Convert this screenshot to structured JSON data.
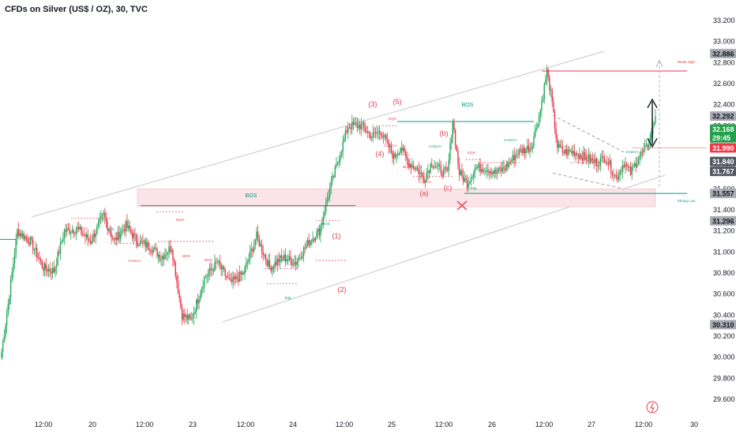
{
  "header": {
    "title": "CFDs on Silver (US$ / OZ), 30, TVC"
  },
  "colors": {
    "up": "#26a65b",
    "down": "#e8394a",
    "green_line": "#089981",
    "red_line": "#f23645",
    "channel": "#c8c8cc",
    "zone": "#fbe4e7"
  },
  "price_tags": [
    {
      "value": "32.886",
      "kind": "grey"
    },
    {
      "value": "32.292",
      "kind": "grey"
    },
    {
      "value": "32.168",
      "kind": "green"
    },
    {
      "value": "29:45",
      "kind": "green-sub"
    },
    {
      "value": "31.990",
      "kind": "red"
    },
    {
      "value": "31.840",
      "kind": "dark"
    },
    {
      "value": "31.767",
      "kind": "dark"
    },
    {
      "value": "31.557",
      "kind": "grey"
    },
    {
      "value": "31.296",
      "kind": "grey"
    },
    {
      "value": "30.310",
      "kind": "grey"
    }
  ],
  "annotations": {
    "bos": "BOS",
    "eqh": "EQH",
    "eql": "EQL",
    "choch": "CHoCH",
    "wave_3": "(3)",
    "wave_5": "(5)",
    "wave_4": "(4)",
    "wave_1": "(1)",
    "wave_2": "(2)",
    "wave_a": "(a)",
    "wave_b": "(b)",
    "wave_c": "(c)",
    "weak_high": "Weak High",
    "strong_low": "Strong Low"
  },
  "chart_data": {
    "type": "candlestick",
    "title": "CFDs on Silver (US$ / OZ), 30, TVC",
    "y_ticks": [
      "33.200",
      "33.000",
      "32.800",
      "32.600",
      "32.400",
      "32.200",
      "32.000",
      "31.800",
      "31.600",
      "31.400",
      "31.200",
      "31.000",
      "30.800",
      "30.600",
      "30.400",
      "30.200",
      "30.000",
      "29.800",
      "29.600"
    ],
    "x_ticks": [
      "12:00",
      "20",
      "12:00",
      "23",
      "12:00",
      "24",
      "12:00",
      "25",
      "12:00",
      "26",
      "12:00",
      "27",
      "12:00",
      "30"
    ],
    "ylim": [
      29.5,
      33.3
    ],
    "grid": false,
    "anchors": [
      [
        0,
        30.05
      ],
      [
        5,
        30.5
      ],
      [
        12,
        31.2
      ],
      [
        22,
        31.1
      ],
      [
        32,
        30.85
      ],
      [
        40,
        30.82
      ],
      [
        48,
        31.2
      ],
      [
        58,
        31.22
      ],
      [
        68,
        31.1
      ],
      [
        78,
        31.35
      ],
      [
        86,
        31.1
      ],
      [
        95,
        31.25
      ],
      [
        104,
        31.1
      ],
      [
        114,
        31.05
      ],
      [
        122,
        30.95
      ],
      [
        130,
        31.05
      ],
      [
        138,
        30.4
      ],
      [
        145,
        30.35
      ],
      [
        155,
        30.75
      ],
      [
        165,
        30.9
      ],
      [
        175,
        30.7
      ],
      [
        185,
        30.8
      ],
      [
        195,
        31.15
      ],
      [
        205,
        30.85
      ],
      [
        215,
        30.95
      ],
      [
        225,
        30.9
      ],
      [
        235,
        31.1
      ],
      [
        243,
        31.2
      ],
      [
        250,
        31.55
      ],
      [
        258,
        31.9
      ],
      [
        265,
        32.2
      ],
      [
        275,
        32.2
      ],
      [
        283,
        32.1
      ],
      [
        290,
        32.15
      ],
      [
        296,
        32.0
      ],
      [
        300,
        31.9
      ],
      [
        305,
        32.0
      ],
      [
        311,
        31.85
      ],
      [
        317,
        31.8
      ],
      [
        323,
        31.7
      ],
      [
        329,
        31.85
      ],
      [
        335,
        31.78
      ],
      [
        341,
        31.75
      ],
      [
        345,
        32.25
      ],
      [
        350,
        31.75
      ],
      [
        356,
        31.65
      ],
      [
        362,
        31.8
      ],
      [
        370,
        31.8
      ],
      [
        378,
        31.75
      ],
      [
        385,
        31.8
      ],
      [
        395,
        31.95
      ],
      [
        405,
        32.0
      ],
      [
        412,
        32.35
      ],
      [
        417,
        32.72
      ],
      [
        420,
        32.5
      ],
      [
        425,
        32.0
      ],
      [
        430,
        31.95
      ],
      [
        438,
        31.95
      ],
      [
        446,
        31.9
      ],
      [
        455,
        31.85
      ],
      [
        462,
        31.9
      ],
      [
        470,
        31.7
      ],
      [
        476,
        31.85
      ],
      [
        481,
        31.75
      ],
      [
        487,
        31.9
      ],
      [
        494,
        32.0
      ],
      [
        500,
        32.29
      ]
    ],
    "levels": {
      "weak_high": 32.72,
      "strong_low": 31.557,
      "current": 32.168,
      "red_line": 31.99
    }
  }
}
